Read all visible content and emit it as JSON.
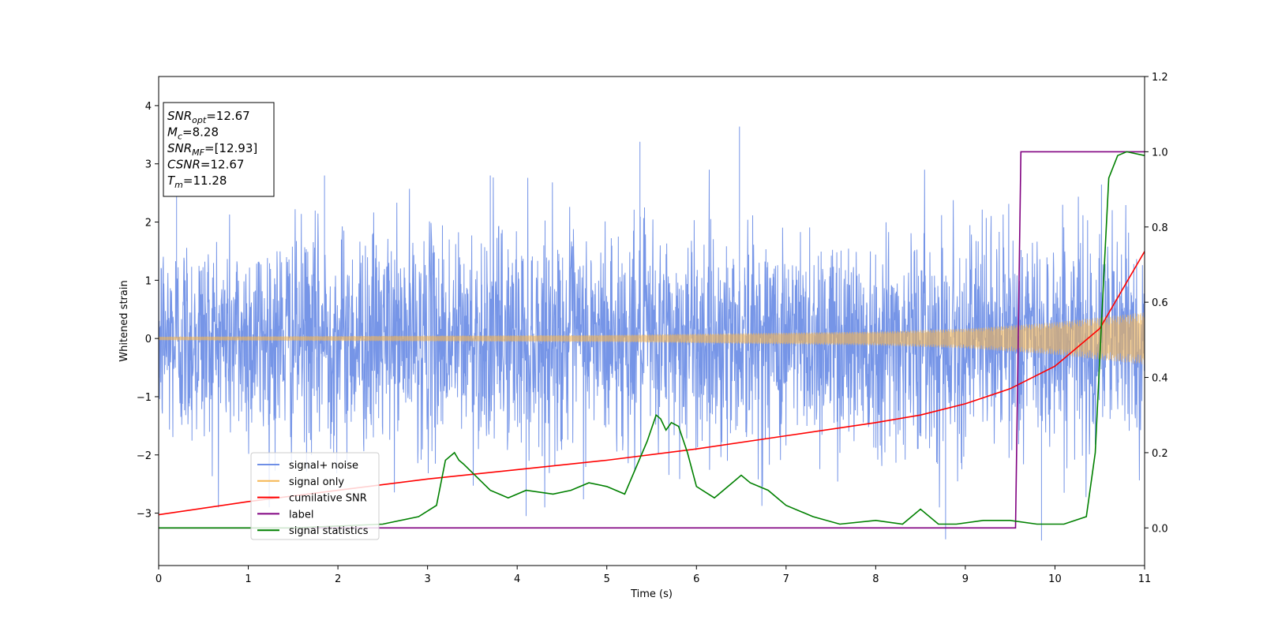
{
  "chart_data": {
    "type": "line",
    "title": "",
    "xlabel": "Time (s)",
    "ylabel": "Whitened strain",
    "xlim": [
      0,
      11
    ],
    "ylim": [
      -3.9,
      4.5
    ],
    "y2lim": [
      -0.1,
      1.2
    ],
    "x_ticks": [
      "0",
      "1",
      "2",
      "3",
      "4",
      "5",
      "6",
      "7",
      "8",
      "9",
      "10",
      "11"
    ],
    "y_ticks": [
      "4",
      "3",
      "2",
      "1",
      "0",
      "−1",
      "−2",
      "−3"
    ],
    "y2_ticks": [
      "1.2",
      "1.0",
      "0.8",
      "0.6",
      "0.4",
      "0.2",
      "0.0"
    ],
    "colors": {
      "noise": "#6f8fe6",
      "signal": "#f5b651",
      "cumulative": "#ff0000",
      "label": "#800080",
      "statistics": "#008000"
    },
    "series": [
      {
        "name": "signal+ noise",
        "axis": "left",
        "description_values": "whitened strain, approx. Gaussian noise with peak excursions",
        "std": 1.0,
        "peaks": [
          [
            0.2,
            2.7
          ],
          [
            1.85,
            2.8
          ],
          [
            3.7,
            2.8
          ],
          [
            4.1,
            -3.05
          ],
          [
            5.37,
            3.38
          ],
          [
            6.48,
            3.64
          ],
          [
            8.78,
            -3.45
          ],
          [
            9.85,
            -3.47
          ]
        ]
      },
      {
        "name": "signal only",
        "axis": "left",
        "envelope": [
          [
            0,
            0.03
          ],
          [
            5,
            0.06
          ],
          [
            8,
            0.12
          ],
          [
            9,
            0.17
          ],
          [
            10,
            0.28
          ],
          [
            11,
            0.45
          ]
        ]
      },
      {
        "name": "cumilative SNR",
        "axis": "right",
        "x": [
          0,
          1,
          2,
          3,
          4,
          5,
          6,
          7,
          8,
          8.5,
          9,
          9.5,
          10,
          10.5,
          11
        ],
        "values": [
          0.035,
          0.07,
          0.1,
          0.13,
          0.155,
          0.18,
          0.21,
          0.245,
          0.28,
          0.3,
          0.33,
          0.37,
          0.43,
          0.53,
          0.735
        ]
      },
      {
        "name": "label",
        "axis": "right",
        "x": [
          0,
          9.56,
          9.62,
          11
        ],
        "values": [
          0.0,
          0.0,
          1.0,
          1.0
        ]
      },
      {
        "name": "signal statistics",
        "axis": "right",
        "x": [
          0,
          1.5,
          2.5,
          2.9,
          3.1,
          3.2,
          3.3,
          3.35,
          3.4,
          3.7,
          3.9,
          4.1,
          4.4,
          4.6,
          4.8,
          5.0,
          5.2,
          5.45,
          5.55,
          5.6,
          5.66,
          5.72,
          5.8,
          5.9,
          6.0,
          6.2,
          6.4,
          6.5,
          6.6,
          6.8,
          7.0,
          7.3,
          7.6,
          8.0,
          8.3,
          8.5,
          8.7,
          8.9,
          9.2,
          9.5,
          9.8,
          10.1,
          10.35,
          10.45,
          10.52,
          10.6,
          10.7,
          10.8,
          11
        ],
        "values": [
          0.0,
          0.0,
          0.01,
          0.03,
          0.06,
          0.18,
          0.2,
          0.18,
          0.17,
          0.1,
          0.08,
          0.1,
          0.09,
          0.1,
          0.12,
          0.11,
          0.09,
          0.23,
          0.3,
          0.29,
          0.26,
          0.28,
          0.27,
          0.2,
          0.11,
          0.08,
          0.12,
          0.14,
          0.12,
          0.1,
          0.06,
          0.03,
          0.01,
          0.02,
          0.01,
          0.05,
          0.01,
          0.01,
          0.02,
          0.02,
          0.01,
          0.01,
          0.03,
          0.2,
          0.55,
          0.93,
          0.99,
          1.0,
          0.99
        ]
      }
    ],
    "legend": {
      "position": "lower-left",
      "entries": [
        "signal+ noise",
        "signal only",
        "cumilative SNR",
        "label",
        "signal statistics"
      ]
    },
    "annotation": {
      "lines": [
        {
          "main": "SNR",
          "sub": "opt",
          "rest": "=12.67"
        },
        {
          "main": "M",
          "sub": "c",
          "rest": "=8.28"
        },
        {
          "main": "SNR",
          "sub": "MF",
          "rest": "=[12.93]"
        },
        {
          "main": "CSNR",
          "sub": "",
          "rest": "=12.67"
        },
        {
          "main": "T",
          "sub": "m",
          "rest": "=11.28"
        }
      ]
    }
  }
}
